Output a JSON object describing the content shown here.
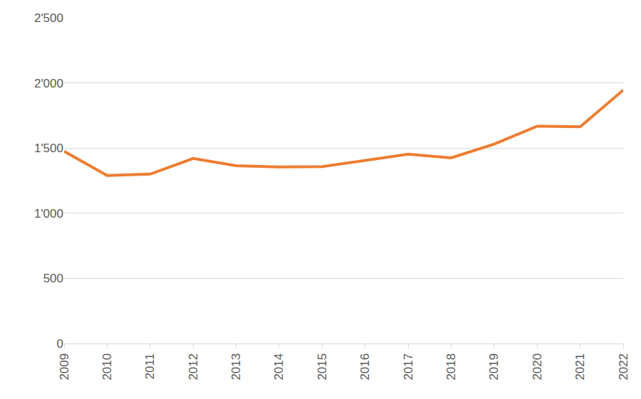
{
  "chart_data": {
    "type": "line",
    "categories": [
      "2009",
      "2010",
      "2011",
      "2012",
      "2013",
      "2014",
      "2015",
      "2016",
      "2017",
      "2018",
      "2019",
      "2020",
      "2021",
      "2022"
    ],
    "values": [
      1475,
      1290,
      1300,
      1420,
      1365,
      1355,
      1358,
      1405,
      1453,
      1425,
      1530,
      1668,
      1663,
      1945
    ],
    "color": "#ed7d31",
    "ylim": [
      0,
      2500
    ],
    "yticks": [
      0,
      500,
      {
        "value": 1000,
        "label": "1'000"
      },
      {
        "value": 1500,
        "label": "1'500"
      },
      {
        "value": 2000,
        "label": "2'000"
      },
      {
        "value": 2500,
        "label": "2'500"
      }
    ],
    "grid": true
  }
}
